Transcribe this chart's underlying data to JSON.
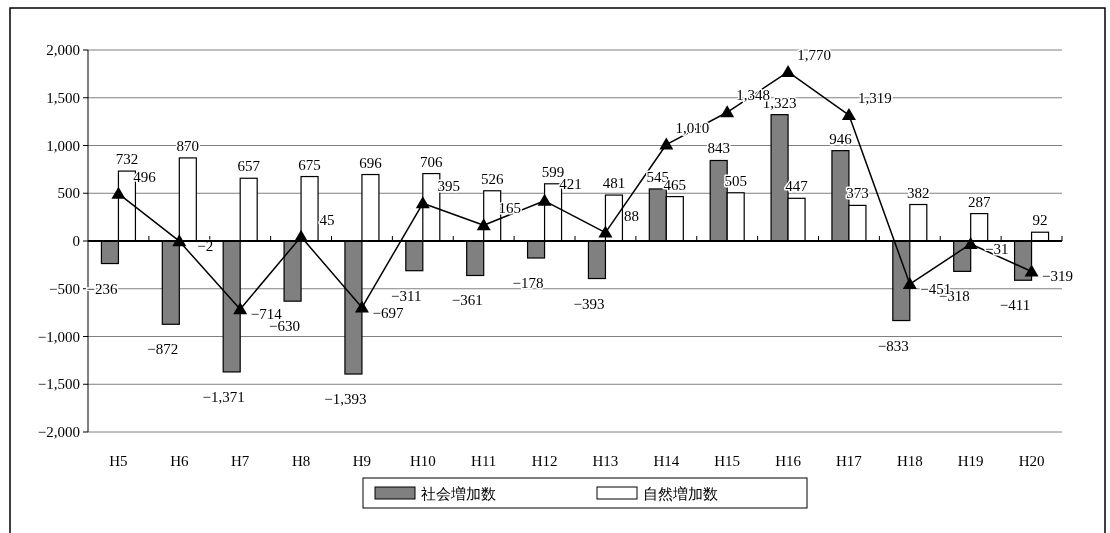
{
  "chart_data": {
    "type": "bar",
    "categories": [
      "H5",
      "H6",
      "H7",
      "H8",
      "H9",
      "H10",
      "H11",
      "H12",
      "H13",
      "H14",
      "H15",
      "H16",
      "H17",
      "H18",
      "H19",
      "H20"
    ],
    "series": [
      {
        "name": "社会増加数",
        "color": "#808080",
        "values": [
          -236,
          -872,
          -1371,
          -630,
          -1393,
          -311,
          -361,
          -178,
          -393,
          545,
          843,
          1323,
          946,
          -833,
          -318,
          -411
        ],
        "value_labels": [
          "−236",
          "−872",
          "−1,371",
          "−630",
          "−1,393",
          "−311",
          "−361",
          "−178",
          "−393",
          "545",
          "843",
          "1,323",
          "946",
          "−833",
          "−318",
          "−411"
        ]
      },
      {
        "name": "自然増加数",
        "color": "#ffffff",
        "values": [
          732,
          870,
          657,
          675,
          696,
          706,
          526,
          599,
          481,
          465,
          505,
          447,
          373,
          382,
          287,
          92
        ],
        "value_labels": [
          "732",
          "870",
          "657",
          "675",
          "696",
          "706",
          "526",
          "599",
          "481",
          "465",
          "505",
          "447",
          "373",
          "382",
          "287",
          "92"
        ]
      },
      {
        "type": "line",
        "color": "#000000",
        "marker": "triangle",
        "values": [
          496,
          -2,
          -714,
          45,
          -697,
          395,
          165,
          421,
          88,
          1010,
          1348,
          1770,
          1319,
          -451,
          -31,
          -319
        ],
        "value_labels": [
          "496",
          "−2",
          "−714",
          "45",
          "−697",
          "395",
          "165",
          "421",
          "88",
          "1,010",
          "1,348",
          "1,770",
          "1,319",
          "−451",
          "−31",
          "−319"
        ]
      }
    ],
    "ylim": [
      -2000,
      2000
    ],
    "yticks": [
      {
        "value": -2000,
        "label": "−2,000"
      },
      {
        "value": -1500,
        "label": "−1,500"
      },
      {
        "value": -1000,
        "label": "−1,000"
      },
      {
        "value": -500,
        "label": "−500"
      },
      0,
      {
        "value": 500,
        "label": "500"
      },
      {
        "value": 1000,
        "label": "1,000"
      },
      {
        "value": 1500,
        "label": "1,500"
      },
      {
        "value": 2000,
        "label": "2,000"
      }
    ],
    "grid": "y",
    "legend": "bottom"
  }
}
